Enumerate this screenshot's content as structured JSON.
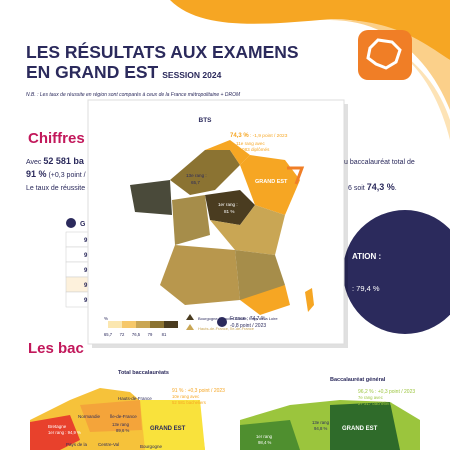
{
  "header": {
    "title_line1": "LES RÉSULTATS AUX EXAMENS",
    "title_line2": "EN GRAND EST",
    "session": "SESSION 2024",
    "note": "N.B. : Les taux de réussite en région sont comparés à ceux de la France métropolitaine + DROM"
  },
  "section1": {
    "heading": "Chiffres",
    "line1_start": "Avec ",
    "line1_bold": "52 581 ba",
    "line1_end": "u baccalauréat total de",
    "line2_bold": "91 %",
    "line2_rest": " (+0,3 point / ",
    "line3_start": "Le taux de réussite e",
    "line3_end": "6 soit ",
    "line3_bold": "74,3 %",
    "line3_dot": ".",
    "table_head": "G",
    "table_rows": [
      "9",
      "9",
      "9",
      "9",
      "9"
    ],
    "circle_title": "ATION :",
    "circle_value": ": 79,4 %"
  },
  "popup": {
    "title": "BTS",
    "ge_rate": "74,3 %",
    "ge_change": " : -1,9 point / 2023",
    "ge_rank": "11e rang avec",
    "ge_count": "11 083 diplômés",
    "ge_label": "GRAND EST",
    "last_rank": "13e rang :",
    "last_value": "65,7",
    "first_rank": "1er rang :",
    "first_value": "81 %",
    "france_rate": "France : 74,7 %",
    "france_change": "-0,8 point / 2023",
    "legend_unit": "%",
    "legend_ticks": [
      "65,7",
      "72",
      "76,5",
      "79",
      "81"
    ],
    "legend_last": "Bourgogne-Franche-Comté, Pays de la Loire",
    "legend_first": "Hauts-de-France, Île-de-France"
  },
  "section2": {
    "heading": "Les bac",
    "left_title": "Total baccalauréats",
    "left_rate": "91 % : +0,3 point / 2023",
    "left_rank": "10e rang avec",
    "left_count": "52 581 bacheliers",
    "left_regions": [
      "Hauts-de-France",
      "Normandie",
      "Île-de-France",
      "Bretagne",
      "Pays de la",
      "Centre-Val",
      "Bourgogne"
    ],
    "left_idf_rank": "13e rang",
    "left_idf_value": "89,6 %",
    "left_first": "1er rang : 94,9 %",
    "left_ge": "GRAND EST",
    "right_title": "Baccalauréat général",
    "right_rate": "96,2 % : +0,3 point / 2023",
    "right_rank": "7e rang avec",
    "right_count": "27 317 bacheliers",
    "right_first_rank": "1er rang",
    "right_first_value": "98,4 %",
    "right_last_rank": "13e rang",
    "right_last_value": "94,8 %",
    "right_ge": "GRAND EST"
  }
}
